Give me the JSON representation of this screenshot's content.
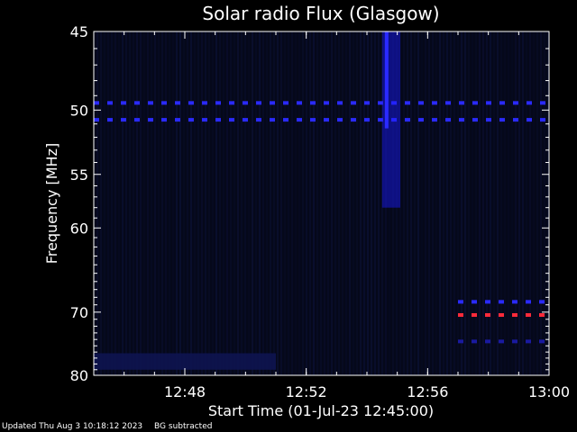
{
  "chart_data": {
    "type": "heatmap",
    "title": "Solar radio Flux (Glasgow)",
    "xlabel": "Start Time (01-Jul-23 12:45:00)",
    "ylabel": "Frequency [MHz]",
    "x_range": [
      "12:45",
      "13:00"
    ],
    "y_range": [
      45,
      80
    ],
    "y_scale": "reciprocal",
    "x_ticks": [
      "12:48",
      "12:52",
      "12:56",
      "13:00"
    ],
    "y_ticks": [
      45,
      50,
      55,
      60,
      70,
      80
    ],
    "background_color": "#05081a",
    "colors": {
      "low": "#05081a",
      "mid": "#1a1aa0",
      "high": "#2a2aff",
      "hot": "#ff2a3a"
    },
    "features": [
      {
        "kind": "dashed-band",
        "frequency": 49.5,
        "time_start": "12:45",
        "time_end": "13:00",
        "color": "#2a2aff"
      },
      {
        "kind": "dashed-band",
        "frequency": 50.7,
        "time_start": "12:45",
        "time_end": "13:00",
        "color": "#2a2aff"
      },
      {
        "kind": "burst",
        "frequency_start": 45,
        "frequency_end": 58,
        "time_start": "12:54.5",
        "time_end": "12:55.1",
        "color": "#1a1aff"
      },
      {
        "kind": "dashed-band",
        "frequency": 68.6,
        "time_start": "12:57",
        "time_end": "13:00",
        "color": "#2a2aff"
      },
      {
        "kind": "dashed-band",
        "frequency": 70.4,
        "time_start": "12:57",
        "time_end": "13:00",
        "color": "#ff2a3a"
      },
      {
        "kind": "dashed-band",
        "frequency": 74.3,
        "time_start": "12:57",
        "time_end": "13:00",
        "color": "#1a1aa0"
      },
      {
        "kind": "glow",
        "frequency_start": 76.2,
        "frequency_end": 79,
        "time_start": "12:45",
        "time_end": "12:51",
        "color": "#0e1450"
      }
    ]
  },
  "footer": {
    "updated": "Updated Thu Aug  3 10:18:12 2023",
    "note": "BG subtracted"
  }
}
